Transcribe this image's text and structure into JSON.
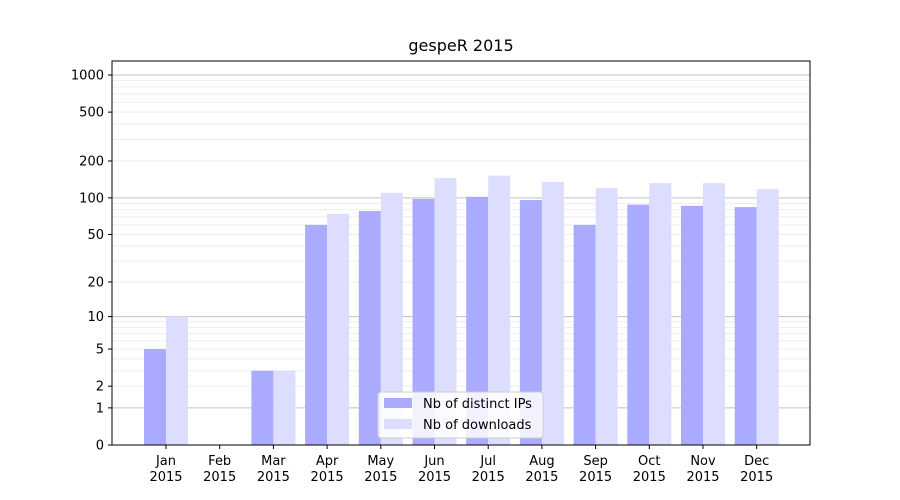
{
  "chart_data": {
    "type": "bar",
    "title": "gespeR 2015",
    "xlabel": "",
    "ylabel": "",
    "categories": [
      "Jan\n2015",
      "Feb\n2015",
      "Mar\n2015",
      "Apr\n2015",
      "May\n2015",
      "Jun\n2015",
      "Jul\n2015",
      "Aug\n2015",
      "Sep\n2015",
      "Oct\n2015",
      "Nov\n2015",
      "Dec\n2015"
    ],
    "series": [
      {
        "name": "Nb of distinct IPs",
        "color": "#aaaaff",
        "values": [
          5,
          0,
          3,
          60,
          78,
          98,
          102,
          96,
          60,
          88,
          86,
          84
        ]
      },
      {
        "name": "Nb of downloads",
        "color": "#ddddff",
        "values": [
          10,
          0,
          3,
          74,
          110,
          145,
          152,
          135,
          120,
          132,
          132,
          118
        ]
      }
    ],
    "yscale": "log(1+y)",
    "ylim": [
      0,
      1300
    ],
    "yticks": [
      "0",
      "1",
      "2",
      "5",
      "10",
      "20",
      "50",
      "100",
      "200",
      "500",
      "1000"
    ],
    "grid": "horizontal",
    "legend_position": "bottom-center"
  }
}
